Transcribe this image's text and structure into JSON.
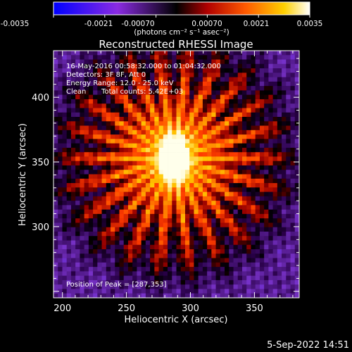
{
  "colorbar": {
    "ticks": [
      "-0.0035",
      "-0.0021",
      "-0.00070",
      "0.00070",
      "0.0021",
      "0.0035"
    ],
    "units": "(photons cm⁻² s⁻¹ asec⁻²)"
  },
  "chart_data": {
    "type": "heatmap",
    "title": "Reconstructed RHESSI Image",
    "xlabel": "Heliocentric X (arcsec)",
    "ylabel": "Heliocentric Y (arcsec)",
    "xlim": [
      193,
      385
    ],
    "ylim": [
      245,
      436
    ],
    "xticks": [
      200,
      250,
      300,
      350
    ],
    "yticks": [
      300,
      350,
      400
    ],
    "color_range": [
      -0.0035,
      0.0035
    ],
    "colormap": "blue-purple-black-red-yellow-white",
    "peak": [
      287,
      353
    ],
    "annotations": {
      "time": "16-May-2016 00:58:32.000 to 01:04:32.000",
      "detectors": "Detectors: 3F 8F, Att 0",
      "energy": "Energy Range: 12.0 - 25.0 keV",
      "method": "Clean",
      "counts": "Total counts: 5.42E+03",
      "peak_label": "Position of Peak = [287,353]"
    }
  },
  "timestamp": "5-Sep-2022 14:51"
}
